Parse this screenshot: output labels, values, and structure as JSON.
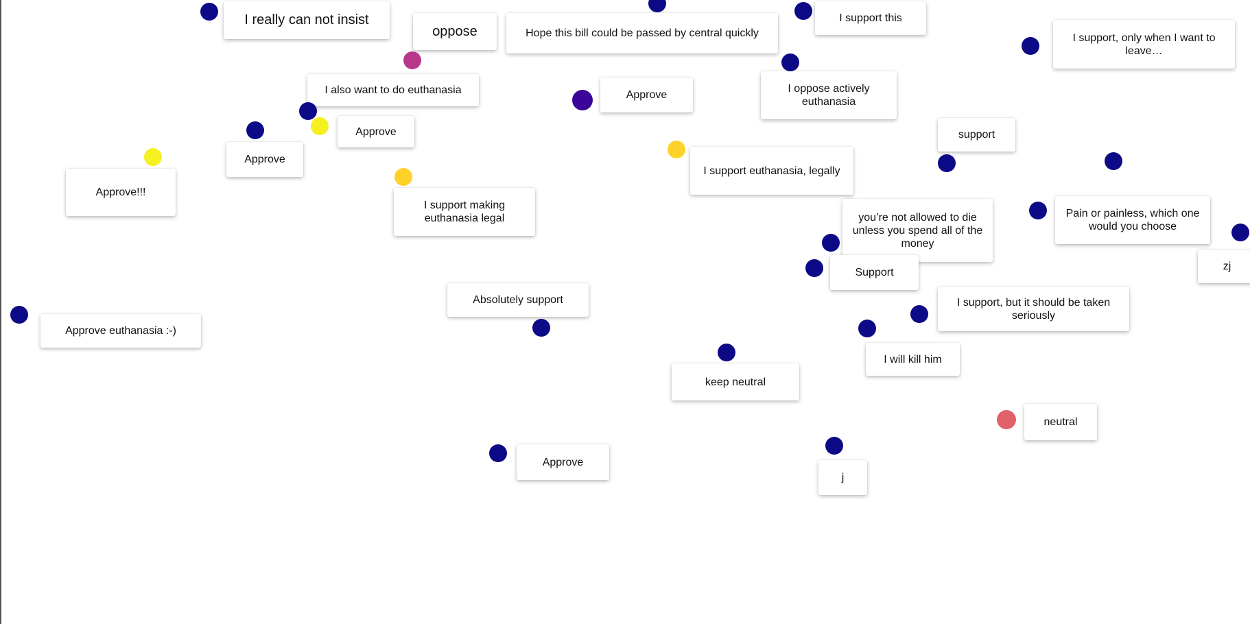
{
  "colors": {
    "navy": "#0c0a86",
    "indigo": "#3b0599",
    "magenta": "#b9378b",
    "yellow": "#f5f01f",
    "gold": "#fed22a",
    "coral": "#e1616a"
  },
  "comments": [
    {
      "text": "I really can not insist",
      "dot_color": "navy"
    },
    {
      "text": "oppose",
      "dot_color": "navy"
    },
    {
      "text": "Hope this bill could be passed by central quickly",
      "dot_color": "navy"
    },
    {
      "text": "I support this",
      "dot_color": "navy"
    },
    {
      "text": "I support, only when I want to leave…",
      "dot_color": "navy"
    },
    {
      "text": "I also want to do euthanasia",
      "dot_color": "magenta"
    },
    {
      "text": "Approve",
      "dot_color": "indigo"
    },
    {
      "text": "I oppose actively euthanasia",
      "dot_color": "navy"
    },
    {
      "text": "Approve",
      "dot_color": "yellow"
    },
    {
      "text": "support",
      "dot_color": "navy"
    },
    {
      "text": "Approve",
      "dot_color": "navy"
    },
    {
      "text": "Approve!!!",
      "dot_color": "yellow"
    },
    {
      "text": "I support euthanasia, legally",
      "dot_color": "gold"
    },
    {
      "text": "I support making euthanasia legal",
      "dot_color": "gold"
    },
    {
      "text": "you’re not allowed to die unless you spend all of the money",
      "dot_color": "navy"
    },
    {
      "text": "Pain or painless, which one would you choose",
      "dot_color": "navy"
    },
    {
      "text": "zj",
      "dot_color": "navy"
    },
    {
      "text": "Support",
      "dot_color": "navy"
    },
    {
      "text": "Absolutely support",
      "dot_color": "navy"
    },
    {
      "text": "I support, but it should be taken seriously",
      "dot_color": "navy"
    },
    {
      "text": "Approve euthanasia :-)",
      "dot_color": "navy"
    },
    {
      "text": "I will kill him",
      "dot_color": "navy"
    },
    {
      "text": "keep neutral",
      "dot_color": "navy"
    },
    {
      "text": "neutral",
      "dot_color": "coral"
    },
    {
      "text": "Approve",
      "dot_color": "navy"
    },
    {
      "text": "j",
      "dot_color": "navy"
    }
  ],
  "extra_dots": [
    {
      "dot_color": "navy"
    },
    {
      "dot_color": "navy"
    },
    {
      "dot_color": "navy"
    }
  ]
}
